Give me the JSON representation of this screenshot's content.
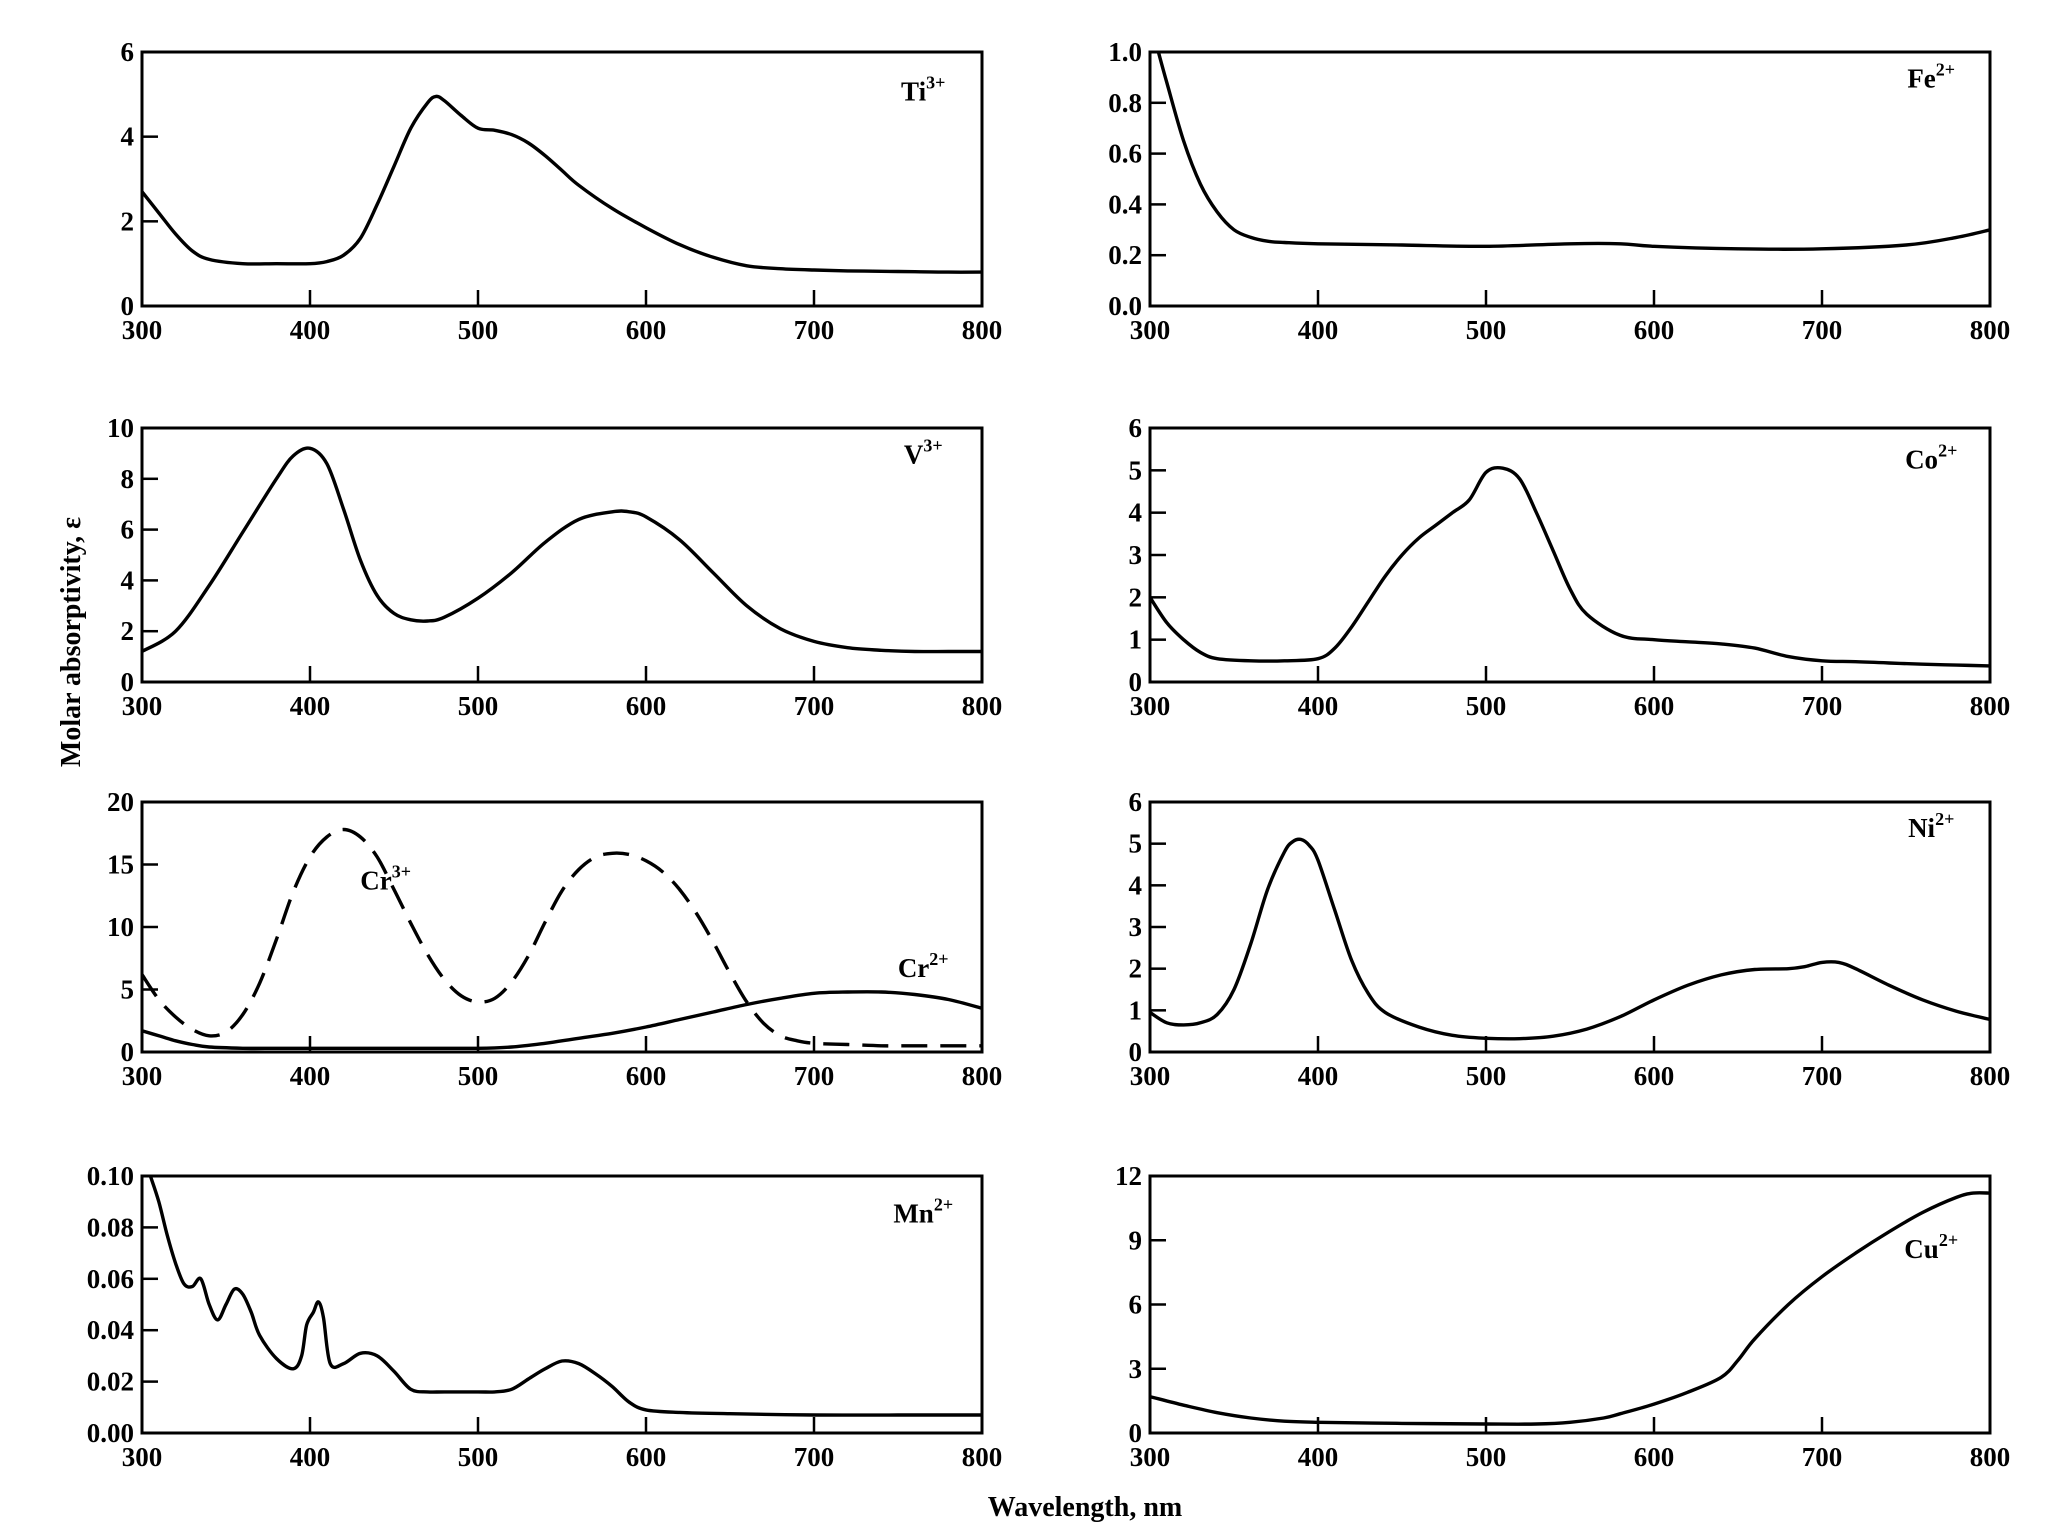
{
  "figure": {
    "xlabel": "Wavelength, nm",
    "ylabel": "Molar absorptivity, ε"
  },
  "chart_data": [
    {
      "type": "line",
      "xlim": [
        300,
        800
      ],
      "ylim": [
        0,
        6
      ],
      "xticks": [
        "300",
        "400",
        "500",
        "600",
        "700",
        "800"
      ],
      "yticks": [
        "0",
        "2",
        "4",
        "6"
      ],
      "grid": false,
      "series": [
        {
          "name": "Ti3+",
          "label_base": "Ti",
          "label_sup": "3+",
          "style": "solid",
          "x": [
            300,
            310,
            320,
            330,
            340,
            360,
            380,
            400,
            410,
            420,
            430,
            440,
            450,
            460,
            470,
            475,
            480,
            490,
            500,
            510,
            520,
            530,
            540,
            550,
            560,
            580,
            600,
            620,
            640,
            660,
            680,
            700,
            720,
            740,
            760,
            780,
            800
          ],
          "y": [
            2.7,
            2.2,
            1.7,
            1.3,
            1.1,
            1.0,
            1.0,
            1.0,
            1.05,
            1.2,
            1.6,
            2.4,
            3.3,
            4.2,
            4.8,
            4.95,
            4.85,
            4.5,
            4.2,
            4.15,
            4.05,
            3.85,
            3.55,
            3.2,
            2.85,
            2.3,
            1.85,
            1.45,
            1.15,
            0.95,
            0.88,
            0.85,
            0.83,
            0.82,
            0.81,
            0.8,
            0.8
          ]
        }
      ]
    },
    {
      "type": "line",
      "xlim": [
        300,
        800
      ],
      "ylim": [
        0,
        1.0
      ],
      "xticks": [
        "300",
        "400",
        "500",
        "600",
        "700",
        "800"
      ],
      "yticks": [
        "0.0",
        "0.2",
        "0.4",
        "0.6",
        "0.8",
        "1.0"
      ],
      "grid": false,
      "series": [
        {
          "name": "Fe2+",
          "label_base": "Fe",
          "label_sup": "2+",
          "style": "solid",
          "x": [
            305,
            310,
            320,
            330,
            340,
            350,
            360,
            370,
            380,
            400,
            450,
            500,
            550,
            580,
            600,
            650,
            700,
            750,
            780,
            800
          ],
          "y": [
            1.0,
            0.88,
            0.65,
            0.48,
            0.37,
            0.3,
            0.27,
            0.255,
            0.25,
            0.245,
            0.24,
            0.235,
            0.245,
            0.245,
            0.235,
            0.225,
            0.225,
            0.24,
            0.27,
            0.3
          ]
        }
      ]
    },
    {
      "type": "line",
      "xlim": [
        300,
        800
      ],
      "ylim": [
        0,
        10
      ],
      "xticks": [
        "300",
        "400",
        "500",
        "600",
        "700",
        "800"
      ],
      "yticks": [
        "0",
        "2",
        "4",
        "6",
        "8",
        "10"
      ],
      "grid": false,
      "series": [
        {
          "name": "V3+",
          "label_base": "V",
          "label_sup": "3+",
          "style": "solid",
          "x": [
            300,
            320,
            340,
            360,
            380,
            390,
            400,
            410,
            420,
            430,
            440,
            450,
            460,
            470,
            480,
            500,
            520,
            540,
            560,
            580,
            590,
            600,
            620,
            640,
            660,
            680,
            700,
            720,
            740,
            760,
            780,
            800
          ],
          "y": [
            1.2,
            2.0,
            3.8,
            5.9,
            8.0,
            8.9,
            9.2,
            8.6,
            6.8,
            4.8,
            3.4,
            2.7,
            2.45,
            2.4,
            2.55,
            3.3,
            4.3,
            5.5,
            6.4,
            6.7,
            6.7,
            6.5,
            5.6,
            4.3,
            3.0,
            2.1,
            1.6,
            1.35,
            1.25,
            1.2,
            1.2,
            1.2
          ]
        }
      ]
    },
    {
      "type": "line",
      "xlim": [
        300,
        800
      ],
      "ylim": [
        0,
        6
      ],
      "xticks": [
        "300",
        "400",
        "500",
        "600",
        "700",
        "800"
      ],
      "yticks": [
        "0",
        "1",
        "2",
        "3",
        "4",
        "5",
        "6"
      ],
      "grid": false,
      "series": [
        {
          "name": "Co2+",
          "label_base": "Co",
          "label_sup": "2+",
          "style": "solid",
          "x": [
            300,
            310,
            320,
            330,
            340,
            360,
            380,
            400,
            410,
            420,
            430,
            440,
            450,
            460,
            470,
            480,
            490,
            500,
            510,
            520,
            530,
            540,
            550,
            560,
            580,
            600,
            620,
            640,
            660,
            680,
            700,
            720,
            740,
            760,
            780,
            800
          ],
          "y": [
            2.0,
            1.4,
            1.0,
            0.7,
            0.55,
            0.5,
            0.5,
            0.55,
            0.8,
            1.3,
            1.9,
            2.5,
            3.0,
            3.4,
            3.7,
            4.0,
            4.3,
            4.95,
            5.05,
            4.8,
            4.0,
            3.1,
            2.2,
            1.6,
            1.1,
            1.0,
            0.95,
            0.9,
            0.8,
            0.6,
            0.5,
            0.48,
            0.45,
            0.42,
            0.4,
            0.38
          ]
        }
      ]
    },
    {
      "type": "line",
      "xlim": [
        300,
        800
      ],
      "ylim": [
        0,
        20
      ],
      "xticks": [
        "300",
        "400",
        "500",
        "600",
        "700",
        "800"
      ],
      "yticks": [
        "0",
        "5",
        "10",
        "15",
        "20"
      ],
      "grid": false,
      "series": [
        {
          "name": "Cr3+",
          "label_base": "Cr",
          "label_sup": "3+",
          "style": "dashed",
          "x": [
            300,
            310,
            320,
            330,
            340,
            350,
            360,
            370,
            380,
            390,
            400,
            410,
            420,
            430,
            440,
            450,
            460,
            470,
            480,
            490,
            500,
            510,
            520,
            530,
            540,
            550,
            560,
            570,
            580,
            590,
            600,
            610,
            620,
            630,
            640,
            650,
            660,
            670,
            680,
            690,
            700,
            720,
            740,
            760,
            780,
            800
          ],
          "y": [
            6.2,
            4.2,
            2.8,
            1.8,
            1.3,
            1.6,
            3.0,
            5.5,
            9.0,
            12.8,
            15.6,
            17.2,
            17.8,
            17.2,
            15.6,
            13.0,
            10.3,
            7.8,
            5.8,
            4.5,
            4.0,
            4.3,
            5.6,
            7.7,
            10.4,
            12.9,
            14.6,
            15.6,
            15.9,
            15.8,
            15.3,
            14.4,
            13.0,
            11.1,
            8.8,
            6.3,
            4.0,
            2.3,
            1.3,
            0.9,
            0.7,
            0.6,
            0.5,
            0.5,
            0.5,
            0.5
          ]
        },
        {
          "name": "Cr2+",
          "label_base": "Cr",
          "label_sup": "2+",
          "style": "solid",
          "x": [
            300,
            310,
            320,
            330,
            340,
            360,
            380,
            400,
            450,
            500,
            520,
            540,
            560,
            580,
            600,
            620,
            640,
            660,
            680,
            700,
            720,
            740,
            760,
            780,
            800
          ],
          "y": [
            1.7,
            1.3,
            0.9,
            0.6,
            0.4,
            0.3,
            0.3,
            0.3,
            0.3,
            0.3,
            0.4,
            0.7,
            1.1,
            1.5,
            2.0,
            2.6,
            3.2,
            3.8,
            4.3,
            4.7,
            4.8,
            4.8,
            4.6,
            4.2,
            3.5
          ]
        }
      ]
    },
    {
      "type": "line",
      "xlim": [
        300,
        800
      ],
      "ylim": [
        0,
        6
      ],
      "xticks": [
        "300",
        "400",
        "500",
        "600",
        "700",
        "800"
      ],
      "yticks": [
        "0",
        "1",
        "2",
        "3",
        "4",
        "5",
        "6"
      ],
      "grid": false,
      "series": [
        {
          "name": "Ni2+",
          "label_base": "Ni",
          "label_sup": "2+",
          "style": "solid",
          "x": [
            300,
            310,
            320,
            330,
            340,
            350,
            360,
            370,
            380,
            385,
            390,
            395,
            400,
            410,
            420,
            430,
            440,
            460,
            480,
            500,
            520,
            540,
            560,
            580,
            600,
            620,
            640,
            660,
            680,
            690,
            700,
            710,
            720,
            740,
            760,
            780,
            800
          ],
          "y": [
            0.95,
            0.7,
            0.65,
            0.7,
            0.9,
            1.5,
            2.6,
            3.9,
            4.8,
            5.05,
            5.1,
            4.95,
            4.6,
            3.4,
            2.2,
            1.4,
            0.95,
            0.6,
            0.4,
            0.33,
            0.32,
            0.38,
            0.55,
            0.85,
            1.25,
            1.6,
            1.85,
            1.98,
            2.0,
            2.05,
            2.15,
            2.15,
            2.0,
            1.6,
            1.25,
            0.98,
            0.78
          ]
        }
      ]
    },
    {
      "type": "line",
      "xlim": [
        300,
        800
      ],
      "ylim": [
        0,
        0.1
      ],
      "xticks": [
        "300",
        "400",
        "500",
        "600",
        "700",
        "800"
      ],
      "yticks": [
        "0.00",
        "0.02",
        "0.04",
        "0.06",
        "0.08",
        "0.10"
      ],
      "grid": false,
      "series": [
        {
          "name": "Mn2+",
          "label_base": "Mn",
          "label_sup": "2+",
          "style": "solid",
          "x": [
            305,
            310,
            315,
            320,
            325,
            330,
            335,
            340,
            345,
            350,
            355,
            360,
            365,
            370,
            380,
            390,
            395,
            398,
            402,
            405,
            408,
            412,
            420,
            430,
            440,
            450,
            460,
            470,
            480,
            500,
            510,
            520,
            530,
            540,
            550,
            560,
            570,
            580,
            590,
            600,
            620,
            650,
            700,
            750,
            800
          ],
          "y": [
            0.1,
            0.09,
            0.077,
            0.066,
            0.058,
            0.057,
            0.06,
            0.05,
            0.044,
            0.05,
            0.056,
            0.054,
            0.047,
            0.038,
            0.029,
            0.025,
            0.03,
            0.042,
            0.047,
            0.051,
            0.045,
            0.027,
            0.027,
            0.031,
            0.03,
            0.024,
            0.017,
            0.016,
            0.016,
            0.016,
            0.016,
            0.017,
            0.021,
            0.025,
            0.028,
            0.027,
            0.023,
            0.018,
            0.012,
            0.009,
            0.008,
            0.0075,
            0.007,
            0.007,
            0.007
          ]
        }
      ]
    },
    {
      "type": "line",
      "xlim": [
        300,
        800
      ],
      "ylim": [
        0,
        12
      ],
      "xticks": [
        "300",
        "400",
        "500",
        "600",
        "700",
        "800"
      ],
      "yticks": [
        "0",
        "3",
        "6",
        "9",
        "12"
      ],
      "grid": false,
      "series": [
        {
          "name": "Cu2+",
          "label_base": "Cu",
          "label_sup": "2+",
          "style": "solid",
          "x": [
            300,
            320,
            340,
            360,
            380,
            400,
            450,
            500,
            530,
            550,
            570,
            580,
            600,
            620,
            640,
            650,
            660,
            680,
            700,
            720,
            740,
            760,
            780,
            790,
            800
          ],
          "y": [
            1.7,
            1.3,
            0.95,
            0.7,
            0.55,
            0.5,
            0.45,
            0.42,
            0.42,
            0.5,
            0.7,
            0.9,
            1.35,
            1.9,
            2.6,
            3.4,
            4.4,
            6.0,
            7.3,
            8.4,
            9.4,
            10.3,
            11.0,
            11.2,
            11.2
          ]
        }
      ]
    }
  ]
}
